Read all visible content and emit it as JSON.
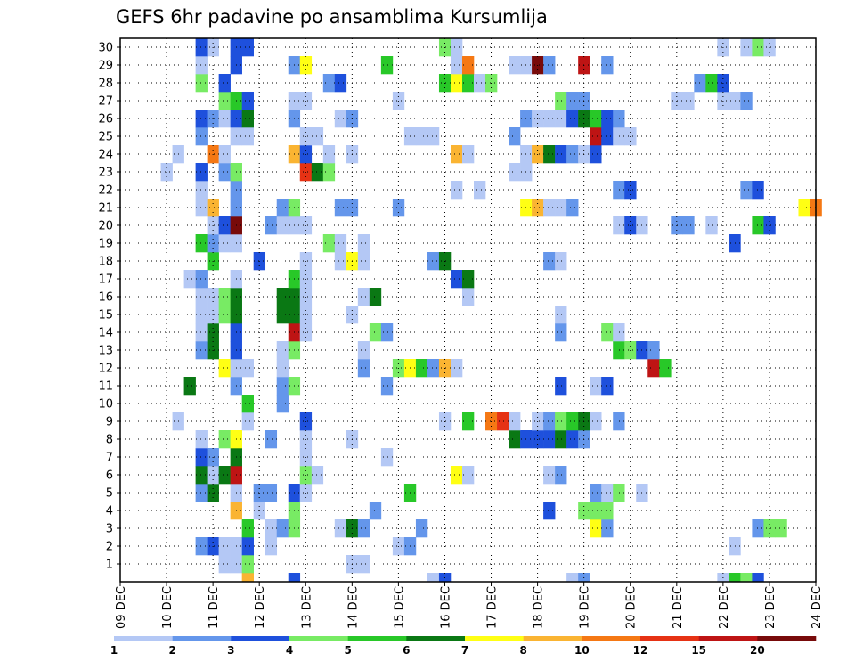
{
  "chart_data": {
    "type": "heatmap",
    "title": "GEFS 6hr padavine po ansamblima Kursumlija",
    "x_ticks": [
      "09 DEC",
      "10 DEC",
      "11 DEC",
      "12 DEC",
      "13 DEC",
      "14 DEC",
      "15 DEC",
      "16 DEC",
      "17 DEC",
      "18 DEC",
      "19 DEC",
      "20 DEC",
      "21 DEC",
      "22 DEC",
      "23 DEC",
      "24 DEC"
    ],
    "y_ticks": [
      "1",
      "2",
      "3",
      "4",
      "5",
      "6",
      "7",
      "8",
      "9",
      "10",
      "11",
      "12",
      "13",
      "14",
      "15",
      "16",
      "17",
      "18",
      "19",
      "20",
      "21",
      "22",
      "23",
      "24",
      "25",
      "26",
      "27",
      "28",
      "29",
      "30"
    ],
    "y_range": [
      0,
      30
    ],
    "grid": true,
    "legend": "bottom colorbar",
    "colorbar": {
      "labels": [
        "1",
        "2",
        "3",
        "4",
        "5",
        "6",
        "7",
        "8",
        "10",
        "12",
        "15",
        "20"
      ],
      "colors": [
        "#b4c8f5",
        "#6496eb",
        "#1e50dc",
        "#78eb64",
        "#28c828",
        "#0a7814",
        "#ffff14",
        "#fab432",
        "#f57814",
        "#e63214",
        "#be1414",
        "#780a0a"
      ]
    },
    "cells": [
      [
        2.75,
        0,
        8
      ],
      [
        3.75,
        0,
        3
      ],
      [
        6.75,
        0,
        1
      ],
      [
        7,
        0,
        3
      ],
      [
        9.75,
        0,
        1
      ],
      [
        10,
        0,
        2
      ],
      [
        13,
        0,
        1
      ],
      [
        13.25,
        0,
        5
      ],
      [
        13.5,
        0,
        4
      ],
      [
        13.75,
        0,
        3
      ],
      [
        2.25,
        1,
        1
      ],
      [
        2.5,
        1,
        1
      ],
      [
        2.75,
        1,
        4
      ],
      [
        5,
        1,
        1
      ],
      [
        5.25,
        1,
        1
      ],
      [
        1.75,
        2,
        2
      ],
      [
        2,
        2,
        3
      ],
      [
        2.25,
        2,
        1
      ],
      [
        2.5,
        2,
        1
      ],
      [
        2.75,
        2,
        3
      ],
      [
        3.25,
        2,
        1
      ],
      [
        6,
        2,
        1
      ],
      [
        6.25,
        2,
        2
      ],
      [
        13.25,
        2,
        1
      ],
      [
        2.75,
        3,
        5
      ],
      [
        3.25,
        3,
        1
      ],
      [
        3.5,
        3,
        2
      ],
      [
        3.75,
        3,
        4
      ],
      [
        4.75,
        3,
        1
      ],
      [
        5,
        3,
        6
      ],
      [
        5.25,
        3,
        2
      ],
      [
        6.5,
        3,
        2
      ],
      [
        10.25,
        3,
        7
      ],
      [
        10.5,
        3,
        2
      ],
      [
        13.75,
        3,
        2
      ],
      [
        14,
        3,
        4
      ],
      [
        14.25,
        3,
        4
      ],
      [
        2.5,
        4,
        8
      ],
      [
        3,
        4,
        1
      ],
      [
        3.75,
        4,
        4
      ],
      [
        5.5,
        4,
        2
      ],
      [
        9.25,
        4,
        3
      ],
      [
        10,
        4,
        4
      ],
      [
        10.25,
        4,
        4
      ],
      [
        10.5,
        4,
        4
      ],
      [
        1.75,
        5,
        2
      ],
      [
        2,
        5,
        6
      ],
      [
        2.5,
        5,
        1
      ],
      [
        3,
        5,
        2
      ],
      [
        3.25,
        5,
        2
      ],
      [
        3.75,
        5,
        3
      ],
      [
        4,
        5,
        1
      ],
      [
        6.25,
        5,
        5
      ],
      [
        10.25,
        5,
        2
      ],
      [
        10.5,
        5,
        1
      ],
      [
        10.75,
        5,
        4
      ],
      [
        11.25,
        5,
        1
      ],
      [
        1.75,
        6,
        6
      ],
      [
        2,
        6,
        1
      ],
      [
        2.25,
        6,
        6
      ],
      [
        2.5,
        6,
        11
      ],
      [
        4,
        6,
        4
      ],
      [
        4.25,
        6,
        1
      ],
      [
        7.25,
        6,
        7
      ],
      [
        7.5,
        6,
        1
      ],
      [
        9.25,
        6,
        1
      ],
      [
        9.5,
        6,
        2
      ],
      [
        1.75,
        7,
        3
      ],
      [
        2,
        7,
        2
      ],
      [
        2.5,
        7,
        6
      ],
      [
        4,
        7,
        1
      ],
      [
        5.75,
        7,
        1
      ],
      [
        1.75,
        8,
        1
      ],
      [
        2.25,
        8,
        4
      ],
      [
        2.5,
        8,
        7
      ],
      [
        3.25,
        8,
        2
      ],
      [
        4,
        8,
        1
      ],
      [
        5,
        8,
        1
      ],
      [
        8.5,
        8,
        6
      ],
      [
        8.75,
        8,
        3
      ],
      [
        9,
        8,
        3
      ],
      [
        9.25,
        8,
        3
      ],
      [
        9.5,
        8,
        6
      ],
      [
        9.75,
        8,
        3
      ],
      [
        10,
        8,
        2
      ],
      [
        1.25,
        9,
        1
      ],
      [
        2.75,
        9,
        1
      ],
      [
        4,
        9,
        3
      ],
      [
        7,
        9,
        1
      ],
      [
        7.5,
        9,
        5
      ],
      [
        8,
        9,
        9
      ],
      [
        8.25,
        9,
        10
      ],
      [
        8.5,
        9,
        1
      ],
      [
        9,
        9,
        1
      ],
      [
        9.25,
        9,
        2
      ],
      [
        9.5,
        9,
        4
      ],
      [
        9.75,
        9,
        5
      ],
      [
        10,
        9,
        6
      ],
      [
        10.25,
        9,
        1
      ],
      [
        10.75,
        9,
        2
      ],
      [
        2.75,
        10,
        5
      ],
      [
        3.5,
        10,
        2
      ],
      [
        1.5,
        11,
        6
      ],
      [
        2.5,
        11,
        2
      ],
      [
        3.5,
        11,
        2
      ],
      [
        3.75,
        11,
        4
      ],
      [
        5.75,
        11,
        2
      ],
      [
        9.5,
        11,
        3
      ],
      [
        10.25,
        11,
        1
      ],
      [
        10.5,
        11,
        3
      ],
      [
        2.25,
        12,
        7
      ],
      [
        2.5,
        12,
        1
      ],
      [
        2.75,
        12,
        1
      ],
      [
        3.5,
        12,
        1
      ],
      [
        5.25,
        12,
        2
      ],
      [
        6,
        12,
        4
      ],
      [
        6.25,
        12,
        7
      ],
      [
        6.5,
        12,
        5
      ],
      [
        6.75,
        12,
        2
      ],
      [
        7,
        12,
        8
      ],
      [
        7.25,
        12,
        1
      ],
      [
        11.5,
        12,
        11
      ],
      [
        11.75,
        12,
        5
      ],
      [
        1.75,
        13,
        2
      ],
      [
        2,
        13,
        6
      ],
      [
        2.5,
        13,
        3
      ],
      [
        3.5,
        13,
        1
      ],
      [
        3.75,
        13,
        4
      ],
      [
        5.25,
        13,
        1
      ],
      [
        10.75,
        13,
        5
      ],
      [
        11,
        13,
        4
      ],
      [
        11.25,
        13,
        3
      ],
      [
        11.5,
        13,
        2
      ],
      [
        1.75,
        14,
        1
      ],
      [
        2,
        14,
        6
      ],
      [
        2.5,
        14,
        3
      ],
      [
        3.75,
        14,
        11
      ],
      [
        4,
        14,
        1
      ],
      [
        5.5,
        14,
        4
      ],
      [
        5.75,
        14,
        2
      ],
      [
        9.5,
        14,
        2
      ],
      [
        10.5,
        14,
        4
      ],
      [
        10.75,
        14,
        1
      ],
      [
        1.75,
        15,
        1
      ],
      [
        2,
        15,
        1
      ],
      [
        2.25,
        15,
        4
      ],
      [
        2.5,
        15,
        6
      ],
      [
        3.5,
        15,
        6
      ],
      [
        3.75,
        15,
        6
      ],
      [
        4,
        15,
        1
      ],
      [
        5,
        15,
        1
      ],
      [
        9.5,
        15,
        1
      ],
      [
        1.75,
        16,
        1
      ],
      [
        2,
        16,
        1
      ],
      [
        2.25,
        16,
        4
      ],
      [
        2.5,
        16,
        6
      ],
      [
        3.5,
        16,
        6
      ],
      [
        3.75,
        16,
        6
      ],
      [
        4,
        16,
        1
      ],
      [
        5.25,
        16,
        1
      ],
      [
        5.5,
        16,
        6
      ],
      [
        7.5,
        16,
        1
      ],
      [
        1.5,
        17,
        1
      ],
      [
        1.75,
        17,
        2
      ],
      [
        2.5,
        17,
        1
      ],
      [
        3.75,
        17,
        5
      ],
      [
        4,
        17,
        1
      ],
      [
        7.25,
        17,
        3
      ],
      [
        7.5,
        17,
        6
      ],
      [
        2,
        18,
        5
      ],
      [
        3,
        18,
        3
      ],
      [
        4,
        18,
        1
      ],
      [
        4.75,
        18,
        1
      ],
      [
        5,
        18,
        7
      ],
      [
        5.25,
        18,
        1
      ],
      [
        6.75,
        18,
        2
      ],
      [
        7,
        18,
        6
      ],
      [
        9.25,
        18,
        2
      ],
      [
        9.5,
        18,
        1
      ],
      [
        1.75,
        19,
        5
      ],
      [
        2,
        19,
        2
      ],
      [
        2.25,
        19,
        1
      ],
      [
        2.5,
        19,
        1
      ],
      [
        4.5,
        19,
        4
      ],
      [
        4.75,
        19,
        1
      ],
      [
        5.25,
        19,
        1
      ],
      [
        13.25,
        19,
        3
      ],
      [
        2,
        20,
        1
      ],
      [
        2.25,
        20,
        3
      ],
      [
        2.5,
        20,
        12
      ],
      [
        3.25,
        20,
        2
      ],
      [
        3.5,
        20,
        1
      ],
      [
        3.75,
        20,
        1
      ],
      [
        4,
        20,
        1
      ],
      [
        10.75,
        20,
        1
      ],
      [
        11,
        20,
        3
      ],
      [
        11.25,
        20,
        1
      ],
      [
        12,
        20,
        2
      ],
      [
        12.25,
        20,
        2
      ],
      [
        12.75,
        20,
        1
      ],
      [
        13.75,
        20,
        5
      ],
      [
        14,
        20,
        3
      ],
      [
        1.75,
        21,
        1
      ],
      [
        2,
        21,
        8
      ],
      [
        2.5,
        21,
        2
      ],
      [
        3.5,
        21,
        2
      ],
      [
        3.75,
        21,
        4
      ],
      [
        4.75,
        21,
        2
      ],
      [
        5,
        21,
        2
      ],
      [
        6,
        21,
        2
      ],
      [
        8.75,
        21,
        7
      ],
      [
        9,
        21,
        8
      ],
      [
        9.25,
        21,
        1
      ],
      [
        9.5,
        21,
        1
      ],
      [
        9.75,
        21,
        2
      ],
      [
        14.75,
        21,
        7
      ],
      [
        15,
        21,
        9
      ],
      [
        1.75,
        22,
        1
      ],
      [
        2.5,
        22,
        2
      ],
      [
        7.25,
        22,
        1
      ],
      [
        7.75,
        22,
        1
      ],
      [
        10.75,
        22,
        2
      ],
      [
        11,
        22,
        3
      ],
      [
        13.5,
        22,
        2
      ],
      [
        13.75,
        22,
        3
      ],
      [
        1,
        23,
        1
      ],
      [
        1.75,
        23,
        3
      ],
      [
        2.25,
        23,
        2
      ],
      [
        2.5,
        23,
        4
      ],
      [
        4,
        23,
        10
      ],
      [
        4.25,
        23,
        6
      ],
      [
        4.5,
        23,
        4
      ],
      [
        8.5,
        23,
        1
      ],
      [
        8.75,
        23,
        1
      ],
      [
        1.25,
        24,
        1
      ],
      [
        2,
        24,
        9
      ],
      [
        2.25,
        24,
        1
      ],
      [
        3.75,
        24,
        8
      ],
      [
        4,
        24,
        3
      ],
      [
        4.5,
        24,
        1
      ],
      [
        5,
        24,
        1
      ],
      [
        7.25,
        24,
        8
      ],
      [
        7.5,
        24,
        1
      ],
      [
        8.75,
        24,
        1
      ],
      [
        9,
        24,
        8
      ],
      [
        9.25,
        24,
        6
      ],
      [
        9.5,
        24,
        3
      ],
      [
        9.75,
        24,
        2
      ],
      [
        10,
        24,
        1
      ],
      [
        10.25,
        24,
        3
      ],
      [
        1.75,
        25,
        2
      ],
      [
        2.5,
        25,
        1
      ],
      [
        2.75,
        25,
        1
      ],
      [
        4,
        25,
        1
      ],
      [
        4.25,
        25,
        1
      ],
      [
        6.25,
        25,
        1
      ],
      [
        6.5,
        25,
        1
      ],
      [
        6.75,
        25,
        1
      ],
      [
        8.5,
        25,
        2
      ],
      [
        10.25,
        25,
        11
      ],
      [
        10.5,
        25,
        3
      ],
      [
        10.75,
        25,
        1
      ],
      [
        11,
        25,
        1
      ],
      [
        1.75,
        26,
        3
      ],
      [
        2,
        26,
        2
      ],
      [
        2.25,
        26,
        1
      ],
      [
        2.5,
        26,
        3
      ],
      [
        2.75,
        26,
        6
      ],
      [
        3.75,
        26,
        2
      ],
      [
        4.75,
        26,
        1
      ],
      [
        5,
        26,
        2
      ],
      [
        8.75,
        26,
        2
      ],
      [
        9,
        26,
        1
      ],
      [
        9.25,
        26,
        1
      ],
      [
        9.5,
        26,
        1
      ],
      [
        9.75,
        26,
        3
      ],
      [
        10,
        26,
        6
      ],
      [
        10.25,
        26,
        5
      ],
      [
        10.5,
        26,
        3
      ],
      [
        10.75,
        26,
        2
      ],
      [
        2.25,
        27,
        4
      ],
      [
        2.5,
        27,
        5
      ],
      [
        2.75,
        27,
        3
      ],
      [
        3.75,
        27,
        1
      ],
      [
        4,
        27,
        1
      ],
      [
        6,
        27,
        1
      ],
      [
        9.5,
        27,
        4
      ],
      [
        9.75,
        27,
        2
      ],
      [
        10,
        27,
        2
      ],
      [
        12,
        27,
        1
      ],
      [
        12.25,
        27,
        1
      ],
      [
        13,
        27,
        1
      ],
      [
        13.25,
        27,
        1
      ],
      [
        13.5,
        27,
        2
      ],
      [
        1.75,
        28,
        4
      ],
      [
        2.25,
        28,
        3
      ],
      [
        4.5,
        28,
        2
      ],
      [
        4.75,
        28,
        3
      ],
      [
        7,
        28,
        5
      ],
      [
        7.25,
        28,
        7
      ],
      [
        7.5,
        28,
        5
      ],
      [
        7.75,
        28,
        1
      ],
      [
        8,
        28,
        4
      ],
      [
        12.5,
        28,
        2
      ],
      [
        12.75,
        28,
        5
      ],
      [
        13,
        28,
        3
      ],
      [
        1.75,
        29,
        1
      ],
      [
        2.5,
        29,
        3
      ],
      [
        3.75,
        29,
        2
      ],
      [
        4,
        29,
        7
      ],
      [
        5.75,
        29,
        5
      ],
      [
        7.25,
        29,
        1
      ],
      [
        7.5,
        29,
        9
      ],
      [
        8.5,
        29,
        1
      ],
      [
        8.75,
        29,
        1
      ],
      [
        9,
        29,
        12
      ],
      [
        9.25,
        29,
        2
      ],
      [
        10,
        29,
        11
      ],
      [
        10.5,
        29,
        2
      ],
      [
        1.75,
        30,
        3
      ],
      [
        2,
        30,
        1
      ],
      [
        2.5,
        30,
        3
      ],
      [
        2.75,
        30,
        3
      ],
      [
        7,
        30,
        4
      ],
      [
        7.25,
        30,
        1
      ],
      [
        13,
        30,
        1
      ],
      [
        13.5,
        30,
        1
      ],
      [
        13.75,
        30,
        4
      ],
      [
        14,
        30,
        1
      ]
    ]
  }
}
